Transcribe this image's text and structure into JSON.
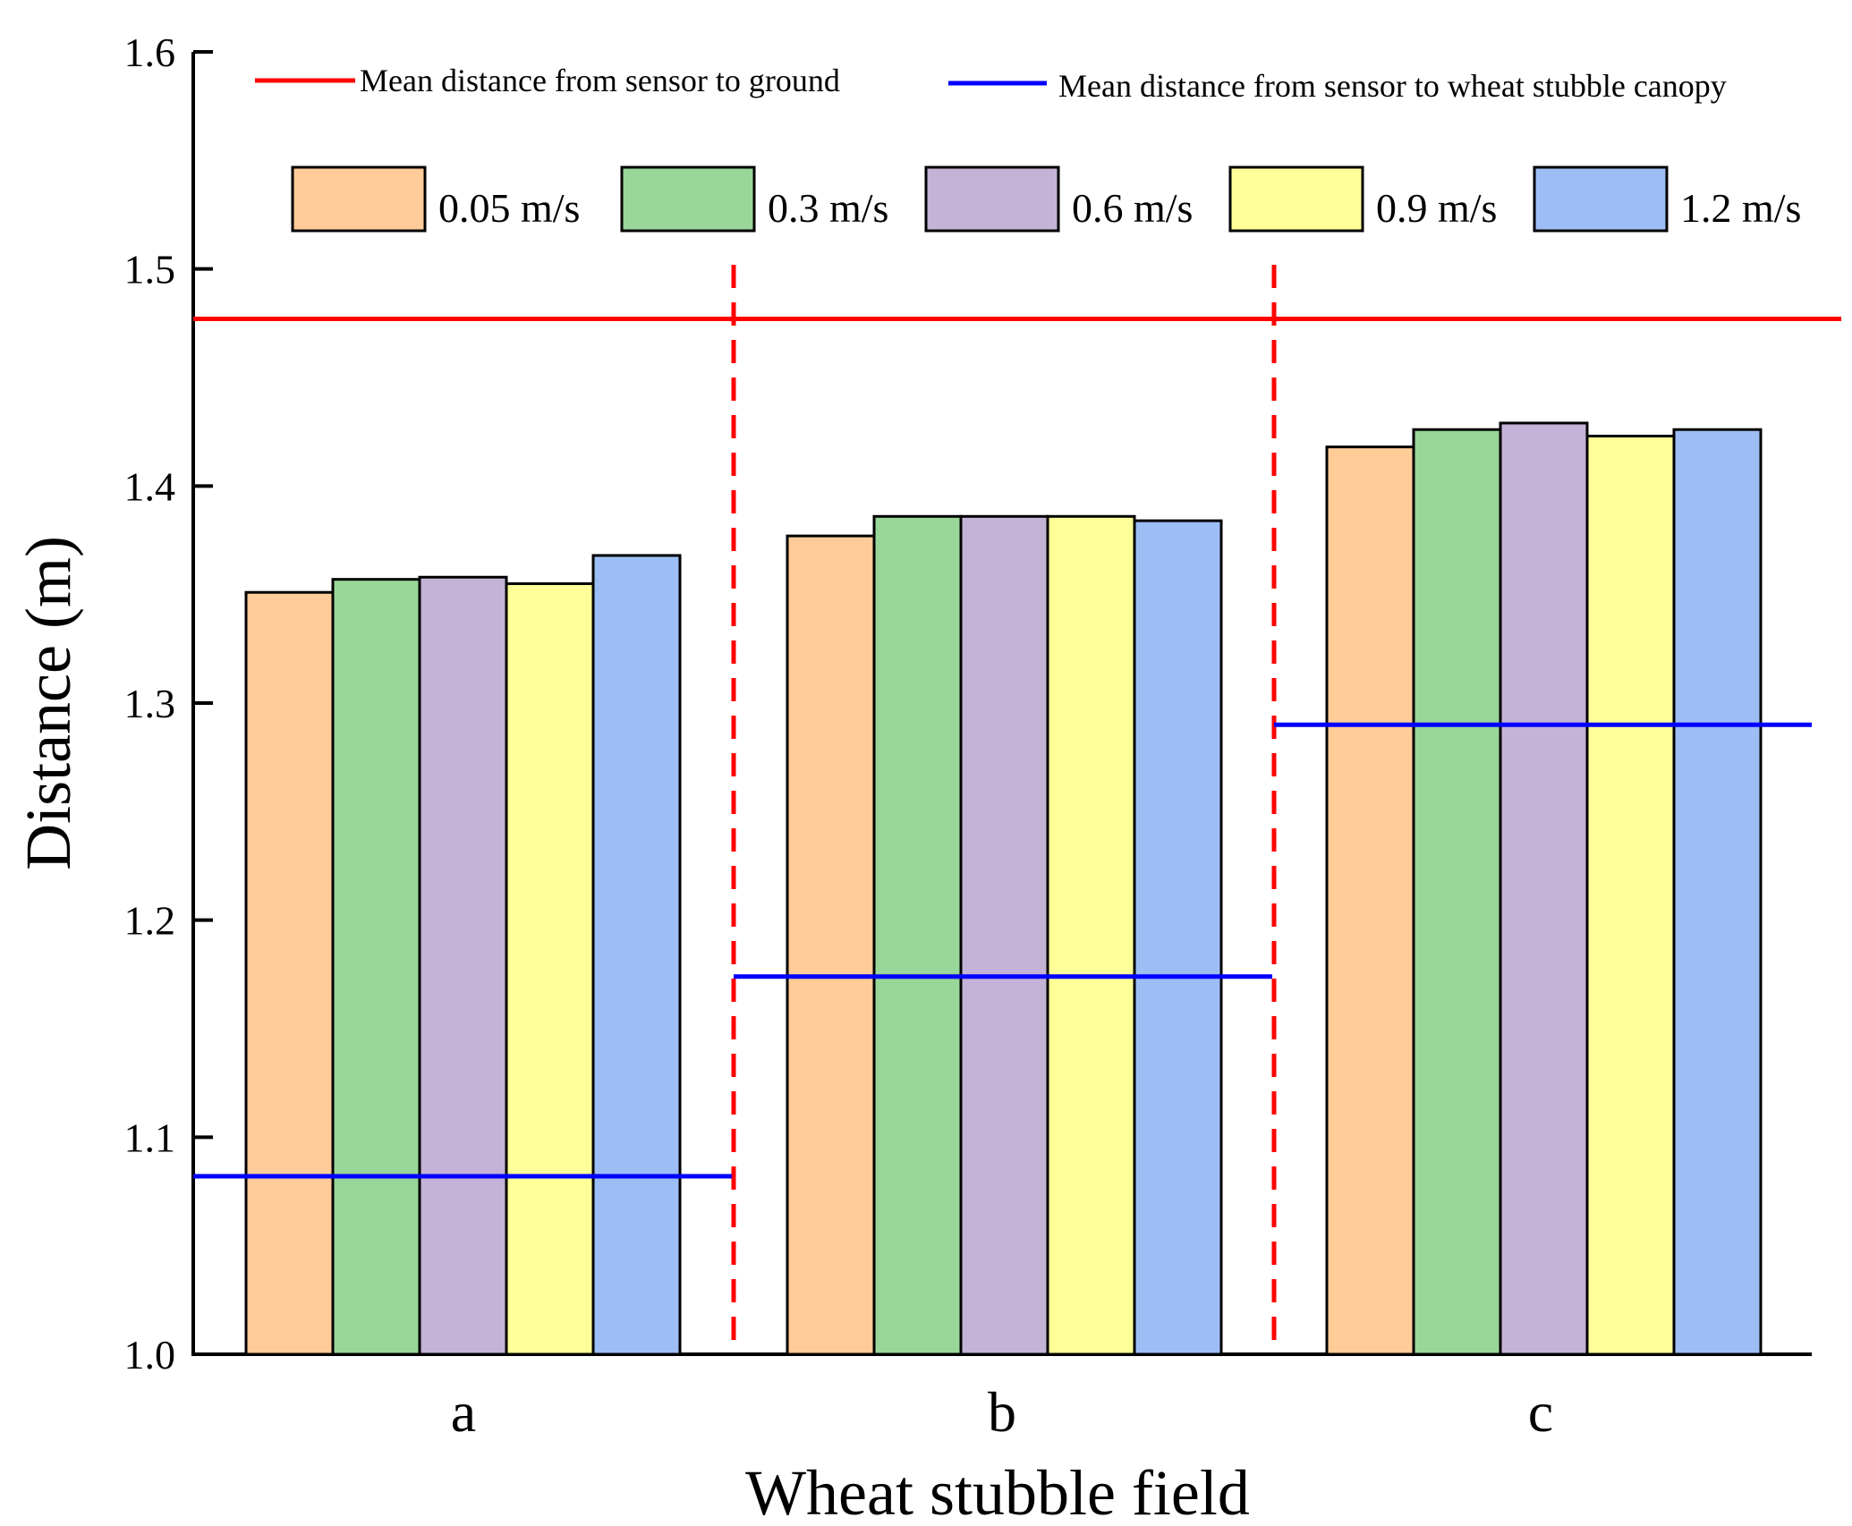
{
  "chart_data": {
    "type": "bar",
    "title": "",
    "xlabel": "Wheat stubble field",
    "ylabel": "Distance (m)",
    "ylim": [
      1.0,
      1.6
    ],
    "yticks": [
      "1.0",
      "1.1",
      "1.2",
      "1.3",
      "1.4",
      "1.5",
      "1.6"
    ],
    "grid": false,
    "categories": [
      "a",
      "b",
      "c"
    ],
    "series": [
      {
        "name": "0.05 m/s",
        "color": "#FFCC99",
        "values": [
          1.351,
          1.377,
          1.418
        ]
      },
      {
        "name": "0.3 m/s",
        "color": "#99D699",
        "values": [
          1.357,
          1.386,
          1.426
        ]
      },
      {
        "name": "0.6 m/s",
        "color": "#C4B3D6",
        "values": [
          1.358,
          1.386,
          1.429
        ]
      },
      {
        "name": "0.9 m/s",
        "color": "#FFFF99",
        "values": [
          1.355,
          1.386,
          1.423
        ]
      },
      {
        "name": "1.2 m/s",
        "color": "#9DBDF5",
        "values": [
          1.368,
          1.384,
          1.426
        ]
      }
    ],
    "reference_lines": [
      {
        "name": "Mean distance from sensor to ground",
        "color": "#FF0000",
        "value": 1.477,
        "scope": "all"
      },
      {
        "name": "Mean distance from sensor to wheat stubble canopy",
        "color": "#0000FF",
        "values": [
          1.082,
          1.174,
          1.29
        ],
        "scope": "per-category"
      }
    ],
    "separators": {
      "style": "dashed",
      "color": "#FF0000"
    },
    "legend_placement": "top"
  }
}
